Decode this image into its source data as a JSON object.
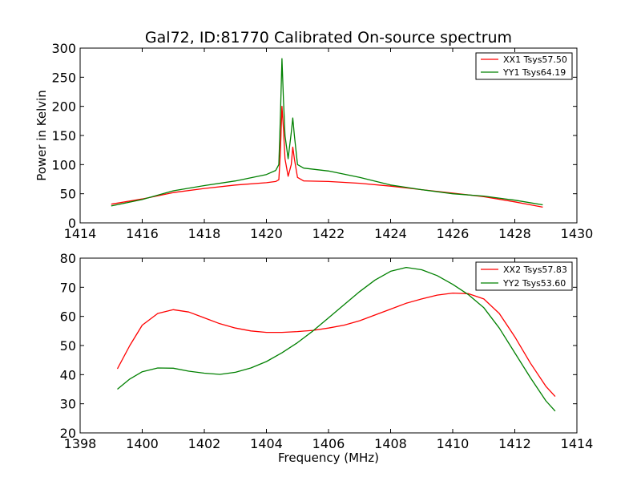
{
  "chart_data": [
    {
      "type": "line",
      "title": "Gal72, ID:81770 Calibrated On-source spectrum",
      "xlabel": "",
      "ylabel": "Power in Kelvin",
      "xlim": [
        1414,
        1430
      ],
      "ylim": [
        0,
        300
      ],
      "xticks": [
        "1414",
        "1416",
        "1418",
        "1420",
        "1422",
        "1424",
        "1426",
        "1428",
        "1430"
      ],
      "yticks": [
        "0",
        "50",
        "100",
        "150",
        "200",
        "250",
        "300"
      ],
      "grid": false,
      "legend": "top-right",
      "series": [
        {
          "name": "XX1 Tsys57.50",
          "color": "#ff0000",
          "points": [
            [
              1415.0,
              32
            ],
            [
              1416.0,
              41
            ],
            [
              1417.0,
              52
            ],
            [
              1418.0,
              59
            ],
            [
              1419.0,
              65
            ],
            [
              1420.0,
              69
            ],
            [
              1420.3,
              71
            ],
            [
              1420.4,
              74
            ],
            [
              1420.45,
              120
            ],
            [
              1420.5,
              200
            ],
            [
              1420.55,
              160
            ],
            [
              1420.6,
              110
            ],
            [
              1420.7,
              80
            ],
            [
              1420.8,
              100
            ],
            [
              1420.85,
              130
            ],
            [
              1420.9,
              110
            ],
            [
              1421.0,
              78
            ],
            [
              1421.2,
              72
            ],
            [
              1422.0,
              71
            ],
            [
              1423.0,
              68
            ],
            [
              1424.0,
              63
            ],
            [
              1425.0,
              57
            ],
            [
              1426.0,
              51
            ],
            [
              1427.0,
              45
            ],
            [
              1428.0,
              36
            ],
            [
              1428.9,
              27
            ]
          ]
        },
        {
          "name": "YY1 Tsys64.19",
          "color": "#008000",
          "points": [
            [
              1415.0,
              29
            ],
            [
              1416.0,
              40
            ],
            [
              1417.0,
              55
            ],
            [
              1418.0,
              64
            ],
            [
              1419.0,
              72
            ],
            [
              1420.0,
              83
            ],
            [
              1420.3,
              90
            ],
            [
              1420.4,
              100
            ],
            [
              1420.45,
              180
            ],
            [
              1420.5,
              282
            ],
            [
              1420.55,
              210
            ],
            [
              1420.6,
              150
            ],
            [
              1420.7,
              110
            ],
            [
              1420.8,
              155
            ],
            [
              1420.85,
              180
            ],
            [
              1420.9,
              150
            ],
            [
              1421.0,
              100
            ],
            [
              1421.2,
              94
            ],
            [
              1422.0,
              89
            ],
            [
              1423.0,
              78
            ],
            [
              1424.0,
              65
            ],
            [
              1425.0,
              57
            ],
            [
              1426.0,
              50
            ],
            [
              1427.0,
              46
            ],
            [
              1428.0,
              39
            ],
            [
              1428.9,
              31
            ]
          ]
        }
      ]
    },
    {
      "type": "line",
      "title": "",
      "xlabel": "Frequency (MHz)",
      "ylabel": "",
      "xlim": [
        1398,
        1414
      ],
      "ylim": [
        20,
        80
      ],
      "xticks": [
        "1398",
        "1400",
        "1402",
        "1404",
        "1406",
        "1408",
        "1410",
        "1412",
        "1414"
      ],
      "yticks": [
        "20",
        "30",
        "40",
        "50",
        "60",
        "70",
        "80"
      ],
      "grid": false,
      "legend": "top-right",
      "series": [
        {
          "name": "XX2 Tsys57.83",
          "color": "#ff0000",
          "points": [
            [
              1399.2,
              42
            ],
            [
              1399.6,
              50
            ],
            [
              1400.0,
              57
            ],
            [
              1400.5,
              61
            ],
            [
              1401.0,
              62.3
            ],
            [
              1401.5,
              61.5
            ],
            [
              1402.0,
              59.5
            ],
            [
              1402.5,
              57.5
            ],
            [
              1403.0,
              56
            ],
            [
              1403.5,
              55
            ],
            [
              1404.0,
              54.5
            ],
            [
              1404.5,
              54.5
            ],
            [
              1405.0,
              54.8
            ],
            [
              1405.5,
              55.2
            ],
            [
              1406.0,
              56
            ],
            [
              1406.5,
              57
            ],
            [
              1407.0,
              58.5
            ],
            [
              1407.5,
              60.5
            ],
            [
              1408.0,
              62.5
            ],
            [
              1408.5,
              64.5
            ],
            [
              1409.0,
              66
            ],
            [
              1409.5,
              67.3
            ],
            [
              1410.0,
              68
            ],
            [
              1410.5,
              67.8
            ],
            [
              1411.0,
              66
            ],
            [
              1411.5,
              61
            ],
            [
              1412.0,
              53
            ],
            [
              1412.5,
              44
            ],
            [
              1413.0,
              36
            ],
            [
              1413.3,
              32.5
            ]
          ]
        },
        {
          "name": "YY2 Tsys53.60",
          "color": "#008000",
          "points": [
            [
              1399.2,
              35
            ],
            [
              1399.6,
              38.5
            ],
            [
              1400.0,
              41
            ],
            [
              1400.5,
              42.3
            ],
            [
              1401.0,
              42.2
            ],
            [
              1401.5,
              41.2
            ],
            [
              1402.0,
              40.5
            ],
            [
              1402.5,
              40.1
            ],
            [
              1403.0,
              40.8
            ],
            [
              1403.5,
              42.3
            ],
            [
              1404.0,
              44.5
            ],
            [
              1404.5,
              47.5
            ],
            [
              1405.0,
              51
            ],
            [
              1405.5,
              55
            ],
            [
              1406.0,
              59.5
            ],
            [
              1406.5,
              64
            ],
            [
              1407.0,
              68.5
            ],
            [
              1407.5,
              72.5
            ],
            [
              1408.0,
              75.5
            ],
            [
              1408.5,
              76.8
            ],
            [
              1409.0,
              76
            ],
            [
              1409.5,
              74
            ],
            [
              1410.0,
              71
            ],
            [
              1410.5,
              67.5
            ],
            [
              1411.0,
              63
            ],
            [
              1411.5,
              56
            ],
            [
              1412.0,
              47.5
            ],
            [
              1412.5,
              39
            ],
            [
              1413.0,
              31
            ],
            [
              1413.3,
              27.5
            ]
          ]
        }
      ]
    }
  ]
}
